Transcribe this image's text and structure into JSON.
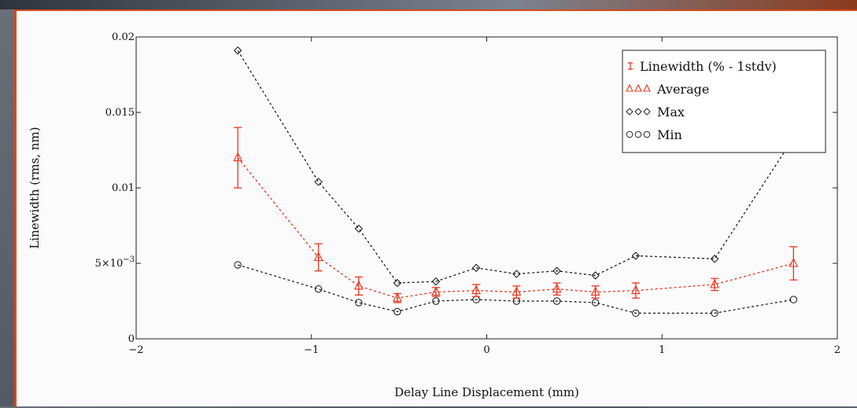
{
  "colors": {
    "average": "#e8341c",
    "max": "#111111",
    "min": "#111111",
    "axis": "#222222"
  },
  "chart_data": {
    "type": "scatter",
    "title": "",
    "xlabel": "Delay Line Displacement (mm)",
    "ylabel": "Linewidth (rms, nm)",
    "xlim": [
      -2,
      2
    ],
    "ylim": [
      0,
      0.02
    ],
    "x_ticks": [
      -2,
      -1,
      0,
      1,
      2
    ],
    "x_tick_labels": [
      "−2",
      "−1",
      "0",
      "1",
      "2"
    ],
    "y_ticks": [
      0,
      0.005,
      0.01,
      0.015,
      0.02
    ],
    "y_tick_labels": [
      "0",
      "5×10",
      "0.01",
      "0.015",
      "0.02"
    ],
    "y_tick_exponent": "−3",
    "grid": false,
    "legend_position": "top-right",
    "x": [
      -1.42,
      -0.96,
      -0.73,
      -0.51,
      -0.29,
      -0.06,
      0.17,
      0.4,
      0.62,
      0.85,
      1.3,
      1.75
    ],
    "series": [
      {
        "name": "Linewidth (% - 1stdv)",
        "kind": "errorbar",
        "values": [
          0.012,
          0.0054,
          0.0035,
          0.0027,
          0.0031,
          0.0032,
          0.0031,
          0.0033,
          0.0031,
          0.0032,
          0.0036,
          0.005
        ],
        "errors": [
          0.002,
          0.0009,
          0.0006,
          0.0003,
          0.0003,
          0.0004,
          0.0004,
          0.0004,
          0.0004,
          0.0005,
          0.0004,
          0.0011
        ]
      },
      {
        "name": "Average",
        "kind": "triangle",
        "values": [
          0.012,
          0.0054,
          0.0035,
          0.0027,
          0.0031,
          0.0032,
          0.0031,
          0.0033,
          0.0031,
          0.0032,
          0.0036,
          0.005
        ]
      },
      {
        "name": "Max",
        "kind": "diamond",
        "values": [
          0.0191,
          0.0104,
          0.0073,
          0.0037,
          0.0038,
          0.0047,
          0.0043,
          0.0045,
          0.0042,
          0.0055,
          0.0053,
          0.0133
        ]
      },
      {
        "name": "Min",
        "kind": "circle",
        "values": [
          0.0049,
          0.0033,
          0.0024,
          0.0018,
          0.0025,
          0.0026,
          0.0025,
          0.0025,
          0.0024,
          0.0017,
          0.0017,
          0.0026
        ]
      }
    ],
    "legend_entries": [
      {
        "label": "Linewidth (% - 1stdv)",
        "marker": "errorbar"
      },
      {
        "label": "Average",
        "marker": "triangle"
      },
      {
        "label": "Max",
        "marker": "diamond"
      },
      {
        "label": "Min",
        "marker": "circle"
      }
    ]
  }
}
